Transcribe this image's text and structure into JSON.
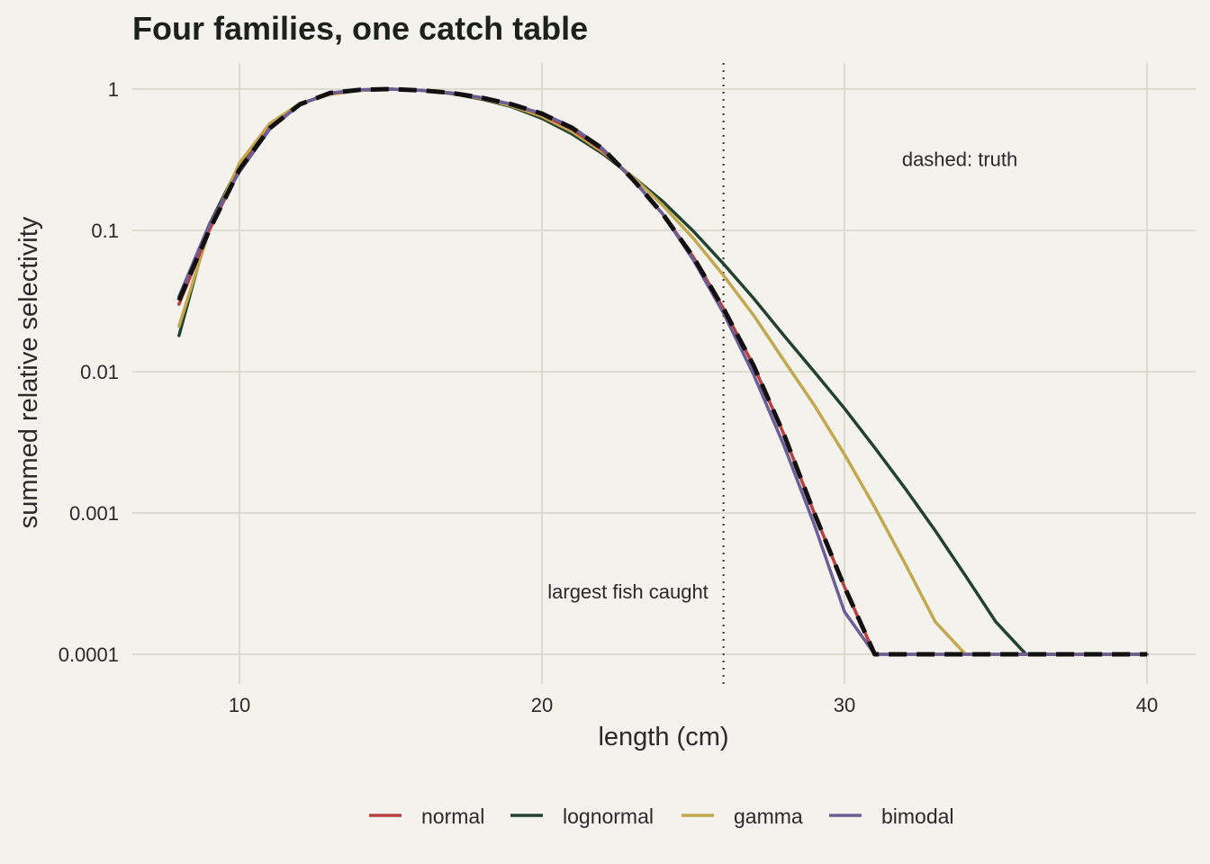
{
  "chart_data": {
    "type": "line",
    "title": "Four families, one catch table",
    "xlabel": "length (cm)",
    "ylabel": "summed relative selectivity",
    "xlim": [
      6.2,
      42
    ],
    "ylim": [
      7e-05,
      1.5
    ],
    "yscale": "log",
    "x_ticks": [
      10,
      20,
      30,
      40
    ],
    "x_tick_labels": [
      "10",
      "20",
      "30",
      "40"
    ],
    "y_ticks": [
      1,
      0.1,
      0.01,
      0.001,
      0.0001
    ],
    "y_tick_labels": [
      "1",
      "0.1",
      "0.01",
      "0.001",
      "0.0001"
    ],
    "grid": true,
    "legend_position": "bottom",
    "x": [
      8,
      9,
      10,
      11,
      12,
      13,
      14,
      15,
      16,
      17,
      18,
      19,
      20,
      21,
      22,
      23,
      24,
      25,
      26,
      27,
      28,
      29,
      30,
      31,
      32,
      33,
      34,
      35,
      36,
      37,
      38,
      39,
      40
    ],
    "series": [
      {
        "name": "normal",
        "color": "#b5413f",
        "values": [
          0.03,
          0.1,
          0.27,
          0.53,
          0.78,
          0.93,
          0.99,
          1.0,
          0.98,
          0.94,
          0.87,
          0.78,
          0.66,
          0.52,
          0.37,
          0.23,
          0.13,
          0.065,
          0.028,
          0.011,
          0.0036,
          0.001,
          0.0003,
          0.0001,
          0.0001,
          0.0001,
          0.0001,
          0.0001,
          0.0001,
          0.0001,
          0.0001,
          0.0001,
          0.0001
        ]
      },
      {
        "name": "lognormal",
        "color": "#23412f",
        "values": [
          0.018,
          0.11,
          0.29,
          0.56,
          0.79,
          0.92,
          0.98,
          1.0,
          0.98,
          0.93,
          0.85,
          0.75,
          0.62,
          0.48,
          0.35,
          0.24,
          0.16,
          0.099,
          0.058,
          0.033,
          0.018,
          0.01,
          0.0055,
          0.0029,
          0.0015,
          0.00075,
          0.00036,
          0.00017,
          0.0001,
          0.0001,
          0.0001,
          0.0001,
          0.0001
        ]
      },
      {
        "name": "gamma",
        "color": "#c4a84f",
        "values": [
          0.021,
          0.1,
          0.3,
          0.57,
          0.79,
          0.92,
          0.98,
          1.0,
          0.98,
          0.94,
          0.86,
          0.76,
          0.64,
          0.5,
          0.36,
          0.24,
          0.15,
          0.088,
          0.048,
          0.025,
          0.012,
          0.0058,
          0.0026,
          0.0011,
          0.00044,
          0.00017,
          0.0001,
          0.0001,
          0.0001,
          0.0001,
          0.0001,
          0.0001,
          0.0001
        ]
      },
      {
        "name": "bimodal",
        "color": "#6b5f98",
        "values": [
          0.034,
          0.11,
          0.26,
          0.52,
          0.78,
          0.94,
          0.99,
          1.0,
          0.98,
          0.94,
          0.87,
          0.78,
          0.67,
          0.54,
          0.38,
          0.23,
          0.13,
          0.062,
          0.026,
          0.0095,
          0.003,
          0.00083,
          0.0002,
          0.0001,
          0.0001,
          0.0001,
          0.0001,
          0.0001,
          0.0001,
          0.0001,
          0.0001,
          0.0001,
          0.0001
        ]
      }
    ],
    "truth": {
      "style": "dashed",
      "color": "#111111",
      "values": [
        0.032,
        0.1,
        0.27,
        0.53,
        0.78,
        0.94,
        0.99,
        1.0,
        0.98,
        0.94,
        0.87,
        0.78,
        0.67,
        0.53,
        0.38,
        0.23,
        0.13,
        0.065,
        0.028,
        0.011,
        0.0036,
        0.001,
        0.0003,
        0.0001,
        0.0001,
        0.0001,
        0.0001,
        0.0001,
        0.0001,
        0.0001,
        0.0001,
        0.0001,
        0.0001
      ]
    },
    "vline": {
      "x": 26,
      "style": "dotted",
      "color": "#333333"
    },
    "annotations": [
      {
        "text": "largest fish caught",
        "x": 25.5,
        "y": 0.00028,
        "anchor": "end"
      },
      {
        "text": "dashed: truth",
        "x": 31.9,
        "y": 0.32,
        "anchor": "start"
      }
    ]
  }
}
